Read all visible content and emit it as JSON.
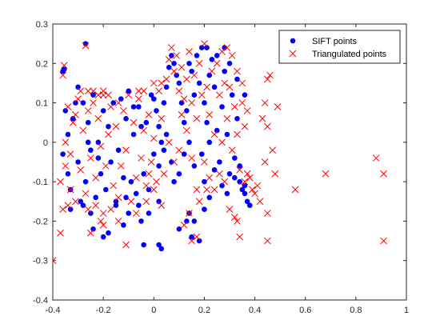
{
  "chart_data": {
    "type": "scatter",
    "title": "",
    "xlabel": "",
    "ylabel": "",
    "xlim": [
      -0.4,
      1.0
    ],
    "ylim": [
      -0.4,
      0.3
    ],
    "xticks": [
      -0.4,
      -0.2,
      0,
      0.2,
      0.4,
      0.6,
      0.8,
      1
    ],
    "xtick_labels": [
      "-0.4",
      "-0.2",
      "0",
      "0.2",
      "0.4",
      "0.6",
      "0.8",
      "1"
    ],
    "yticks": [
      -0.4,
      -0.3,
      -0.2,
      -0.1,
      0,
      0.1,
      0.2,
      0.3
    ],
    "ytick_labels": [
      "-0.4",
      "-0.3",
      "-0.2",
      "-0.1",
      "0",
      "0.1",
      "0.2",
      "0.3"
    ],
    "grid": false,
    "legend_position": "top-right",
    "series": [
      {
        "name": "SIFT points",
        "marker": "filled-circle",
        "color": "#0000ff",
        "points": [
          [
            -0.36,
            0.18
          ],
          [
            -0.355,
            0.185
          ],
          [
            -0.27,
            0.25
          ],
          [
            -0.36,
            -0.03
          ],
          [
            -0.34,
            -0.08
          ],
          [
            -0.35,
            0.08
          ],
          [
            -0.33,
            -0.12
          ],
          [
            -0.34,
            0.02
          ],
          [
            -0.32,
            0.06
          ],
          [
            -0.31,
            0.1
          ],
          [
            -0.3,
            -0.05
          ],
          [
            -0.29,
            -0.15
          ],
          [
            -0.28,
            0.1
          ],
          [
            -0.27,
            -0.1
          ],
          [
            -0.26,
            0.05
          ],
          [
            -0.25,
            -0.02
          ],
          [
            -0.24,
            0.12
          ],
          [
            -0.23,
            -0.14
          ],
          [
            -0.22,
            0.0
          ],
          [
            -0.21,
            -0.08
          ],
          [
            -0.2,
            0.08
          ],
          [
            -0.19,
            -0.12
          ],
          [
            -0.18,
            0.04
          ],
          [
            -0.17,
            -0.05
          ],
          [
            -0.16,
            0.1
          ],
          [
            -0.15,
            -0.15
          ],
          [
            -0.14,
            -0.02
          ],
          [
            -0.13,
            0.11
          ],
          [
            -0.12,
            -0.09
          ],
          [
            -0.11,
            0.06
          ],
          [
            -0.1,
            -0.18
          ],
          [
            -0.09,
            -0.1
          ],
          [
            -0.08,
            0.02
          ],
          [
            -0.07,
            -0.13
          ],
          [
            -0.06,
            0.09
          ],
          [
            -0.05,
            -0.2
          ],
          [
            -0.04,
            -0.08
          ],
          [
            -0.03,
            0.05
          ],
          [
            -0.02,
            -0.12
          ],
          [
            -0.01,
            0.12
          ],
          [
            0.0,
            -0.03
          ],
          [
            0.01,
            0.08
          ],
          [
            0.02,
            -0.15
          ],
          [
            0.03,
            0.0
          ],
          [
            0.04,
            0.1
          ],
          [
            0.05,
            0.14
          ],
          [
            0.06,
            0.19
          ],
          [
            0.07,
            0.22
          ],
          [
            0.08,
            0.2
          ],
          [
            0.09,
            0.17
          ],
          [
            0.1,
            0.15
          ],
          [
            0.11,
            0.1
          ],
          [
            0.12,
            0.05
          ],
          [
            0.13,
            0.08
          ],
          [
            0.14,
            0.2
          ],
          [
            0.15,
            0.18
          ],
          [
            0.16,
            0.12
          ],
          [
            0.17,
            0.22
          ],
          [
            0.18,
            0.15
          ],
          [
            0.19,
            0.24
          ],
          [
            0.2,
            0.1
          ],
          [
            0.21,
            0.05
          ],
          [
            0.22,
            0.0
          ],
          [
            0.23,
            0.21
          ],
          [
            0.24,
            0.14
          ],
          [
            0.25,
            0.03
          ],
          [
            0.26,
            -0.05
          ],
          [
            0.27,
            0.09
          ],
          [
            0.28,
            0.18
          ],
          [
            0.29,
            0.02
          ],
          [
            0.3,
            -0.08
          ],
          [
            0.31,
            0.12
          ],
          [
            0.32,
            -0.04
          ],
          [
            0.33,
            0.06
          ],
          [
            0.34,
            -0.1
          ],
          [
            0.35,
            -0.12
          ],
          [
            0.36,
            -0.13
          ],
          [
            0.37,
            -0.15
          ],
          [
            0.38,
            -0.16
          ],
          [
            0.36,
            -0.11
          ],
          [
            -0.18,
            -0.23
          ],
          [
            -0.2,
            -0.24
          ],
          [
            -0.24,
            -0.22
          ],
          [
            -0.12,
            -0.21
          ],
          [
            -0.02,
            -0.18
          ],
          [
            -0.04,
            -0.26
          ],
          [
            0.02,
            -0.26
          ],
          [
            0.03,
            -0.27
          ],
          [
            0.1,
            -0.22
          ],
          [
            0.13,
            -0.2
          ],
          [
            0.14,
            -0.18
          ],
          [
            0.18,
            -0.25
          ],
          [
            0.15,
            -0.24
          ],
          [
            0.16,
            -0.2
          ],
          [
            0.2,
            -0.17
          ],
          [
            0.22,
            -0.14
          ],
          [
            0.2,
            -0.1
          ],
          [
            0.1,
            -0.08
          ],
          [
            0.07,
            -0.05
          ],
          [
            0.02,
            -0.06
          ],
          [
            0.04,
            -0.02
          ],
          [
            -0.06,
            -0.16
          ],
          [
            -0.11,
            -0.14
          ],
          [
            -0.15,
            -0.16
          ],
          [
            -0.1,
            0.13
          ],
          [
            -0.08,
            0.09
          ],
          [
            0.0,
            0.11
          ],
          [
            0.05,
            0.02
          ],
          [
            0.02,
            0.04
          ],
          [
            -0.05,
            0.04
          ],
          [
            0.08,
            -0.1
          ],
          [
            0.12,
            -0.03
          ],
          [
            0.14,
            0.0
          ],
          [
            0.16,
            -0.06
          ],
          [
            0.19,
            -0.03
          ],
          [
            0.24,
            -0.07
          ],
          [
            0.27,
            -0.11
          ],
          [
            0.29,
            -0.13
          ],
          [
            0.32,
            -0.09
          ],
          [
            0.34,
            -0.06
          ],
          [
            0.22,
            0.17
          ],
          [
            0.25,
            0.22
          ],
          [
            0.3,
            0.2
          ],
          [
            0.33,
            0.16
          ],
          [
            0.36,
            0.12
          ],
          [
            0.21,
            0.24
          ],
          [
            0.28,
            0.24
          ],
          [
            -0.3,
            0.14
          ],
          [
            -0.26,
            0.0
          ],
          [
            -0.22,
            -0.04
          ],
          [
            -0.33,
            -0.17
          ],
          [
            -0.28,
            -0.16
          ],
          [
            -0.25,
            -0.18
          ]
        ]
      },
      {
        "name": "Triangulated points",
        "marker": "x",
        "color": "#ff0000",
        "points": [
          [
            -0.36,
            0.17
          ],
          [
            -0.355,
            0.195
          ],
          [
            -0.27,
            0.245
          ],
          [
            -0.4,
            -0.3
          ],
          [
            -0.37,
            -0.23
          ],
          [
            -0.36,
            -0.17
          ],
          [
            -0.37,
            -0.1
          ],
          [
            -0.25,
            -0.23
          ],
          [
            -0.26,
            -0.17
          ],
          [
            -0.21,
            -0.2
          ],
          [
            -0.2,
            -0.21
          ],
          [
            -0.11,
            -0.26
          ],
          [
            -0.14,
            -0.2
          ],
          [
            -0.03,
            -0.15
          ],
          [
            -0.07,
            -0.18
          ],
          [
            0.03,
            -0.16
          ],
          [
            0.08,
            -0.05
          ],
          [
            0.15,
            -0.25
          ],
          [
            0.17,
            -0.24
          ],
          [
            0.14,
            -0.18
          ],
          [
            0.12,
            -0.21
          ],
          [
            0.3,
            -0.17
          ],
          [
            0.32,
            -0.19
          ],
          [
            0.33,
            -0.2
          ],
          [
            0.34,
            -0.24
          ],
          [
            0.45,
            -0.25
          ],
          [
            0.45,
            -0.18
          ],
          [
            0.46,
            0.17
          ],
          [
            0.45,
            0.16
          ],
          [
            0.44,
            0.1
          ],
          [
            0.49,
            0.09
          ],
          [
            0.43,
            0.06
          ],
          [
            0.45,
            0.04
          ],
          [
            0.47,
            -0.02
          ],
          [
            0.44,
            -0.05
          ],
          [
            0.48,
            -0.08
          ],
          [
            0.41,
            -0.11
          ],
          [
            0.4,
            -0.13
          ],
          [
            0.56,
            -0.12
          ],
          [
            0.68,
            -0.08
          ],
          [
            0.88,
            -0.04
          ],
          [
            0.91,
            -0.08
          ],
          [
            0.91,
            -0.25
          ],
          [
            0.36,
            -0.1
          ],
          [
            0.38,
            -0.09
          ],
          [
            0.37,
            -0.08
          ],
          [
            0.39,
            -0.12
          ],
          [
            0.42,
            -0.15
          ],
          [
            -0.32,
            0.05
          ],
          [
            -0.31,
            0.07
          ],
          [
            -0.33,
            -0.03
          ],
          [
            -0.3,
            0.11
          ],
          [
            -0.29,
            -0.07
          ],
          [
            -0.28,
            0.03
          ],
          [
            -0.27,
            -0.13
          ],
          [
            -0.26,
            0.08
          ],
          [
            -0.25,
            -0.04
          ],
          [
            -0.24,
            0.1
          ],
          [
            -0.23,
            -0.09
          ],
          [
            -0.22,
            0.06
          ],
          [
            -0.21,
            -0.01
          ],
          [
            -0.2,
            0.12
          ],
          [
            -0.19,
            -0.06
          ],
          [
            -0.18,
            0.02
          ],
          [
            -0.17,
            0.09
          ],
          [
            -0.16,
            -0.11
          ],
          [
            -0.15,
            0.04
          ],
          [
            -0.14,
            0.1
          ],
          [
            -0.13,
            -0.06
          ],
          [
            -0.12,
            0.08
          ],
          [
            -0.11,
            -0.02
          ],
          [
            -0.1,
            0.12
          ],
          [
            -0.09,
            -0.15
          ],
          [
            -0.08,
            0.05
          ],
          [
            -0.07,
            -0.09
          ],
          [
            -0.06,
            0.11
          ],
          [
            -0.05,
            -0.04
          ],
          [
            -0.04,
            0.03
          ],
          [
            -0.03,
            -0.11
          ],
          [
            -0.02,
            0.07
          ],
          [
            -0.01,
            -0.05
          ],
          [
            0.0,
            0.01
          ],
          [
            0.01,
            -0.1
          ],
          [
            0.02,
            0.13
          ],
          [
            0.03,
            0.06
          ],
          [
            0.04,
            -0.08
          ],
          [
            0.05,
            0.16
          ],
          [
            0.06,
            0.21
          ],
          [
            0.07,
            0.24
          ],
          [
            0.08,
            0.18
          ],
          [
            0.09,
            0.22
          ],
          [
            0.1,
            0.13
          ],
          [
            0.11,
            0.19
          ],
          [
            0.12,
            0.11
          ],
          [
            0.13,
            0.16
          ],
          [
            0.14,
            0.23
          ],
          [
            0.15,
            0.1
          ],
          [
            0.16,
            0.17
          ],
          [
            0.17,
            0.06
          ],
          [
            0.18,
            0.2
          ],
          [
            0.19,
            0.12
          ],
          [
            0.2,
            0.25
          ],
          [
            0.21,
            0.14
          ],
          [
            0.22,
            0.07
          ],
          [
            0.23,
            0.18
          ],
          [
            0.24,
            0.02
          ],
          [
            0.25,
            0.2
          ],
          [
            0.26,
            0.12
          ],
          [
            0.27,
            0.0
          ],
          [
            0.28,
            0.15
          ],
          [
            0.29,
            0.06
          ],
          [
            0.3,
            0.14
          ],
          [
            0.31,
            -0.02
          ],
          [
            0.32,
            0.09
          ],
          [
            0.33,
            0.02
          ],
          [
            0.34,
            -0.07
          ],
          [
            0.35,
            0.1
          ],
          [
            0.36,
            0.04
          ],
          [
            0.37,
            0.08
          ],
          [
            0.31,
            0.22
          ],
          [
            0.29,
            0.24
          ],
          [
            0.27,
            0.23
          ],
          [
            0.33,
            0.18
          ],
          [
            0.35,
            0.15
          ],
          [
            0.2,
            -0.05
          ],
          [
            0.22,
            -0.09
          ],
          [
            0.24,
            -0.12
          ],
          [
            0.26,
            -0.08
          ],
          [
            0.28,
            -0.1
          ],
          [
            0.21,
            -0.12
          ],
          [
            0.18,
            -0.15
          ],
          [
            0.06,
            0.0
          ],
          [
            0.1,
            -0.02
          ],
          [
            0.0,
            -0.12
          ],
          [
            -0.02,
            -0.08
          ],
          [
            -0.35,
            0.0
          ],
          [
            -0.34,
            0.09
          ],
          [
            -0.33,
            -0.12
          ],
          [
            -0.34,
            -0.16
          ],
          [
            -0.35,
            -0.06
          ],
          [
            -0.31,
            -0.15
          ],
          [
            -0.29,
            0.13
          ],
          [
            -0.26,
            0.13
          ],
          [
            -0.24,
            0.13
          ],
          [
            -0.22,
            0.12
          ],
          [
            -0.2,
            0.13
          ],
          [
            -0.18,
            0.12
          ],
          [
            -0.23,
            -0.16
          ],
          [
            -0.2,
            -0.18
          ],
          [
            -0.17,
            -0.17
          ],
          [
            -0.14,
            -0.14
          ],
          [
            -0.06,
            0.13
          ],
          [
            -0.04,
            0.13
          ],
          [
            0.03,
            0.15
          ],
          [
            0.0,
            0.15
          ],
          [
            0.11,
            0.07
          ],
          [
            0.13,
            0.03
          ],
          [
            0.15,
            -0.04
          ],
          [
            0.17,
            -0.12
          ]
        ]
      }
    ]
  }
}
